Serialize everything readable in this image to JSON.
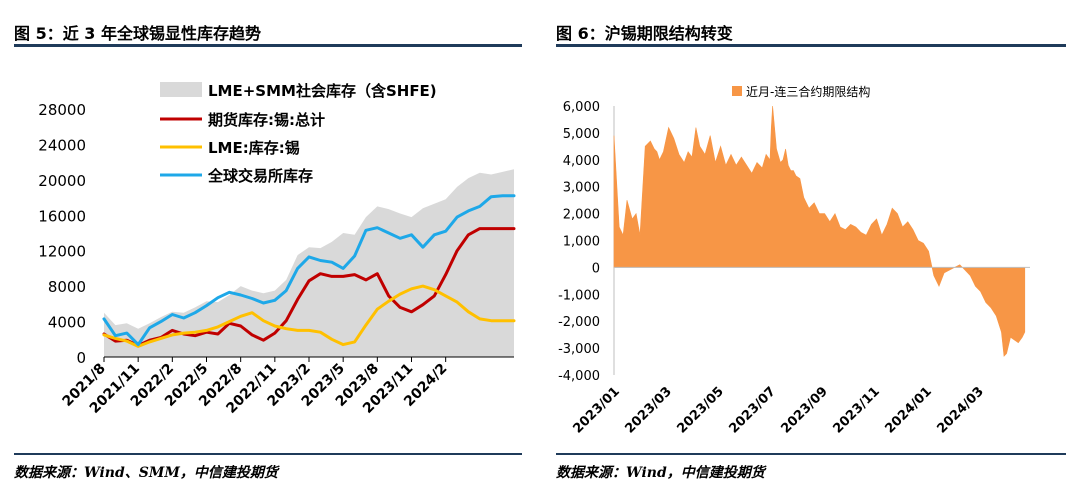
{
  "figures": [
    {
      "title": "图 5：近 3 年全球锡显性库存趋势",
      "source": "数据来源：Wind、SMM，中信建投期货"
    },
    {
      "title": "图 6：沪锡期限结构转变",
      "source": "数据来源：Wind，中信建投期货"
    }
  ],
  "colors": {
    "rule": "#1f3b5a",
    "grey_area": "#d9d9d9",
    "red": "#c00000",
    "yellow": "#ffc000",
    "blue": "#1ea8e8",
    "orange": "#f79646"
  },
  "chart_data": [
    {
      "type": "line",
      "title": "近 3 年全球锡显性库存趋势",
      "xlabel": "",
      "ylabel": "",
      "ylim": [
        0,
        28000
      ],
      "yticks": [
        "28000",
        "24000",
        "20000",
        "16000",
        "12000",
        "8000",
        "4000",
        "0"
      ],
      "xticks": [
        "2021/8",
        "2021/11",
        "2022/2",
        "2022/5",
        "2022/8",
        "2022/11",
        "2023/2",
        "2023/5",
        "2023/8",
        "2023/11",
        "2024/2"
      ],
      "x_month_index": [
        0,
        3,
        6,
        9,
        12,
        15,
        18,
        21,
        24,
        27,
        30
      ],
      "legend": [
        "LME+SMM社会库存（含SHFE)",
        "期货库存:锡:总计",
        "LME:库存:锡",
        "全球交易所库存"
      ],
      "series": [
        {
          "name": "LME+SMM社会库存（含SHFE)",
          "style": "area",
          "color": "#d9d9d9",
          "x": [
            0,
            1,
            2,
            3,
            4,
            5,
            6,
            7,
            8,
            9,
            10,
            11,
            12,
            13,
            14,
            15,
            16,
            17,
            18,
            19,
            20,
            21,
            22,
            23,
            24,
            25,
            26,
            27,
            28,
            29,
            30,
            31,
            32,
            33,
            34,
            35,
            36
          ],
          "values": [
            5000,
            3600,
            3800,
            3200,
            3800,
            4500,
            5100,
            5000,
            5600,
            6300,
            6200,
            7000,
            8000,
            7500,
            7200,
            7500,
            8700,
            11500,
            12400,
            12300,
            13000,
            14000,
            13800,
            15800,
            17000,
            16700,
            16200,
            15800,
            16800,
            17300,
            17800,
            19200,
            20200,
            20800,
            20600,
            20900,
            21200
          ]
        },
        {
          "name": "期货库存:锡:总计",
          "style": "line",
          "color": "#c00000",
          "x": [
            0,
            1,
            2,
            3,
            4,
            5,
            6,
            7,
            8,
            9,
            10,
            11,
            12,
            13,
            14,
            15,
            16,
            17,
            18,
            19,
            20,
            21,
            22,
            23,
            24,
            25,
            26,
            27,
            28,
            29,
            30,
            31,
            32,
            33,
            34,
            35,
            36
          ],
          "values": [
            2600,
            1800,
            1900,
            1300,
            1900,
            2200,
            3000,
            2600,
            2400,
            2800,
            2600,
            3800,
            3500,
            2500,
            1900,
            2700,
            4100,
            6500,
            8600,
            9400,
            9100,
            9100,
            9300,
            8700,
            9400,
            6900,
            5600,
            5100,
            5900,
            6900,
            9300,
            12000,
            13800,
            14500,
            14500,
            14500,
            14500
          ]
        },
        {
          "name": "LME:库存:锡",
          "style": "line",
          "color": "#ffc000",
          "x": [
            0,
            1,
            2,
            3,
            4,
            5,
            6,
            7,
            8,
            9,
            10,
            11,
            12,
            13,
            14,
            15,
            16,
            17,
            18,
            19,
            20,
            21,
            22,
            23,
            24,
            25,
            26,
            27,
            28,
            29,
            30,
            31,
            32,
            33,
            34,
            35,
            36
          ],
          "values": [
            2500,
            2100,
            1800,
            1200,
            1700,
            2100,
            2500,
            2700,
            2800,
            3000,
            3400,
            4000,
            4600,
            5000,
            4100,
            3500,
            3200,
            3000,
            3000,
            2800,
            2000,
            1400,
            1700,
            3600,
            5400,
            6300,
            7100,
            7700,
            8000,
            7600,
            6900,
            6200,
            5100,
            4300,
            4100,
            4100,
            4100
          ]
        },
        {
          "name": "全球交易所库存",
          "style": "line",
          "color": "#1ea8e8",
          "x": [
            0,
            1,
            2,
            3,
            4,
            5,
            6,
            7,
            8,
            9,
            10,
            11,
            12,
            13,
            14,
            15,
            16,
            17,
            18,
            19,
            20,
            21,
            22,
            23,
            24,
            25,
            26,
            27,
            28,
            29,
            30,
            31,
            32,
            33,
            34,
            35,
            36
          ],
          "values": [
            4300,
            2400,
            2700,
            1400,
            3300,
            4000,
            4800,
            4400,
            5000,
            5800,
            6700,
            7300,
            7000,
            6600,
            6100,
            6400,
            7500,
            10000,
            11300,
            10900,
            10700,
            10000,
            11400,
            14300,
            14600,
            14000,
            13400,
            13800,
            12400,
            13800,
            14200,
            15800,
            16500,
            17000,
            18100,
            18200,
            18200
          ]
        }
      ]
    },
    {
      "type": "area",
      "title": "沪锡期限结构转变",
      "ylim": [
        -4000,
        6000
      ],
      "yticks": [
        "6,000",
        "5,000",
        "4,000",
        "3,000",
        "2,000",
        "1,000",
        "0",
        "-1,000",
        "-2,000",
        "-3,000",
        "-4,000"
      ],
      "xticks": [
        "2023/01",
        "2023/03",
        "2023/05",
        "2023/07",
        "2023/09",
        "2023/11",
        "2024/01",
        "2024/03"
      ],
      "x_month_index": [
        0,
        2,
        4,
        6,
        8,
        10,
        12,
        14
      ],
      "legend": [
        "近月-连三合约期限结构"
      ],
      "series": [
        {
          "name": "近月-连三合约期限结构",
          "color": "#f79646",
          "x": [
            0,
            0.2,
            0.35,
            0.5,
            0.7,
            0.85,
            1.0,
            1.2,
            1.4,
            1.55,
            1.65,
            1.75,
            1.9,
            2.1,
            2.3,
            2.5,
            2.7,
            2.85,
            3.0,
            3.15,
            3.3,
            3.5,
            3.7,
            3.9,
            4.1,
            4.3,
            4.5,
            4.7,
            4.9,
            5.1,
            5.3,
            5.5,
            5.7,
            5.85,
            6.0,
            6.05,
            6.1,
            6.25,
            6.4,
            6.5,
            6.6,
            6.7,
            6.8,
            6.9,
            7.0,
            7.15,
            7.3,
            7.5,
            7.7,
            7.9,
            8.1,
            8.3,
            8.5,
            8.7,
            8.9,
            9.1,
            9.3,
            9.5,
            9.7,
            9.9,
            10.1,
            10.3,
            10.5,
            10.7,
            10.9,
            11.1,
            11.3,
            11.5,
            11.7,
            11.9,
            12.1,
            12.3,
            12.5,
            12.7,
            12.9,
            13.1,
            13.3,
            13.5,
            13.7,
            13.9,
            14.1,
            14.3,
            14.5,
            14.7,
            14.9,
            15.0,
            15.1,
            15.25,
            15.4,
            15.55,
            15.7,
            15.8
          ],
          "values": [
            4900,
            1500,
            1200,
            2500,
            1800,
            2000,
            1200,
            4500,
            4700,
            4400,
            4300,
            4000,
            4300,
            5200,
            4800,
            4200,
            3900,
            4300,
            4100,
            5200,
            4500,
            4200,
            4900,
            3900,
            4500,
            3800,
            4200,
            3800,
            4100,
            3800,
            3500,
            3900,
            3700,
            4200,
            4000,
            5200,
            6000,
            4400,
            3900,
            4000,
            4400,
            3800,
            3600,
            3600,
            3400,
            3300,
            2600,
            2200,
            2400,
            2000,
            2000,
            1700,
            2000,
            1500,
            1400,
            1600,
            1500,
            1300,
            1200,
            1600,
            1800,
            1200,
            1600,
            2200,
            2000,
            1500,
            1700,
            1400,
            1000,
            900,
            600,
            -300,
            -700,
            -200,
            -100,
            0,
            100,
            -100,
            -300,
            -700,
            -900,
            -1300,
            -1500,
            -1800,
            -2400,
            -3300,
            -3200,
            -2600,
            -2700,
            -2800,
            -2600,
            -2400
          ]
        }
      ]
    }
  ]
}
